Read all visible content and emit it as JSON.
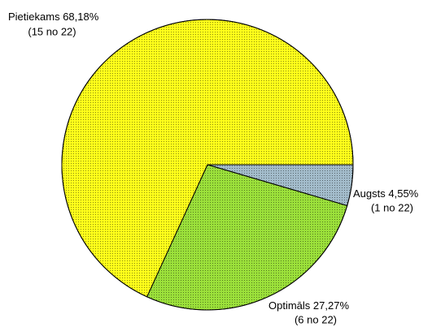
{
  "chart_data": {
    "type": "pie",
    "categories": [
      "Augsts",
      "Optimāls",
      "Pietiekams"
    ],
    "values": [
      4.55,
      27.27,
      68.18
    ],
    "value_labels": [
      "4,55%",
      "27,27%",
      "68,18%"
    ],
    "count_labels": [
      "(1 no 22)",
      "(6 no 22)",
      "(15 no 22)"
    ],
    "colors": [
      "#a3bccb",
      "#9be03a",
      "#ffff1a"
    ]
  }
}
